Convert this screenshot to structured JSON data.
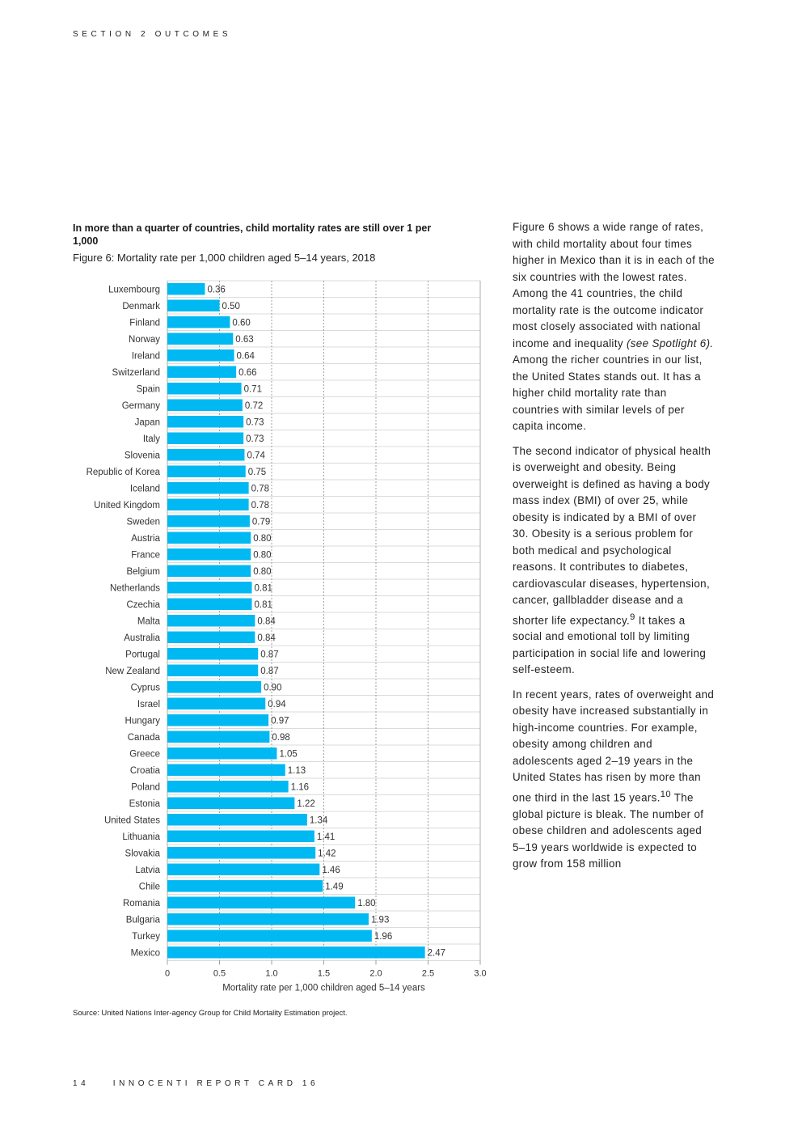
{
  "header": {
    "section": "SECTION 2 OUTCOMES"
  },
  "figure": {
    "heading": "In more than a quarter of countries, child mortality rates are still over 1 per 1,000",
    "caption_label": "Figure 6:",
    "caption_text": "Mortality rate per 1,000 children aged 5–14 years, 2018",
    "source": "Source: United Nations Inter-agency Group for Child Mortality Estimation project."
  },
  "chart_data": {
    "type": "bar",
    "orientation": "horizontal",
    "title": "Mortality rate per 1,000 children aged 5–14 years, 2018",
    "xlabel": "Mortality rate per 1,000 children aged 5–14 years",
    "ylabel": "",
    "xlim": [
      0,
      3
    ],
    "xticks": [
      "0",
      "0.5",
      "1.0",
      "1.5",
      "2.0",
      "2.5",
      "3.0"
    ],
    "bar_color": "#00b9f2",
    "categories": [
      "Luxembourg",
      "Denmark",
      "Finland",
      "Norway",
      "Ireland",
      "Switzerland",
      "Spain",
      "Germany",
      "Japan",
      "Italy",
      "Slovenia",
      "Republic of Korea",
      "Iceland",
      "United Kingdom",
      "Sweden",
      "Austria",
      "France",
      "Belgium",
      "Netherlands",
      "Czechia",
      "Malta",
      "Australia",
      "Portugal",
      "New Zealand",
      "Cyprus",
      "Israel",
      "Hungary",
      "Canada",
      "Greece",
      "Croatia",
      "Poland",
      "Estonia",
      "United States",
      "Lithuania",
      "Slovakia",
      "Latvia",
      "Chile",
      "Romania",
      "Bulgaria",
      "Turkey",
      "Mexico"
    ],
    "values": [
      0.36,
      0.5,
      0.6,
      0.63,
      0.64,
      0.66,
      0.71,
      0.72,
      0.73,
      0.73,
      0.74,
      0.75,
      0.78,
      0.78,
      0.79,
      0.8,
      0.8,
      0.8,
      0.81,
      0.81,
      0.84,
      0.84,
      0.87,
      0.87,
      0.9,
      0.94,
      0.97,
      0.98,
      1.05,
      1.13,
      1.16,
      1.22,
      1.34,
      1.41,
      1.42,
      1.46,
      1.49,
      1.8,
      1.93,
      1.96,
      2.47
    ],
    "value_labels": [
      "0.36",
      "0.50",
      "0.60",
      "0.63",
      "0.64",
      "0.66",
      "0.71",
      "0.72",
      "0.73",
      "0.73",
      "0.74",
      "0.75",
      "0.78",
      "0.78",
      "0.79",
      "0.80",
      "0.80",
      "0.80",
      "0.81",
      "0.81",
      "0.84",
      "0.84",
      "0.87",
      "0.87",
      "0.90",
      "0.94",
      "0.97",
      "0.98",
      "1.05",
      "1.13",
      "1.16",
      "1.22",
      "1.34",
      "1.41",
      "1.42",
      "1.46",
      "1.49",
      "1.80",
      "1.93",
      "1.96",
      "2.47"
    ]
  },
  "body": {
    "p1_a": "Figure 6 shows a wide range of rates, with child mortality about four times higher in Mexico than it is in each of the six countries with the lowest rates. Among the 41 countries, the child mortality rate is the outcome indicator most closely associated with national income and inequality ",
    "p1_em": "(see Spotlight 6).",
    "p1_b": " Among the richer countries in our list, the United States stands out. It has a higher child mortality rate than countries with similar levels of per capita income.",
    "p2_a": "The second indicator of physical health is overweight and obesity. Being overweight is defined as having a body mass index (BMI) of over 25, while obesity is indicated by a BMI of over 30. Obesity is a serious problem for both medical and psychological reasons. It contributes to diabetes, cardiovascular diseases, hypertension, cancer, gallbladder disease and a shorter life expectancy.",
    "p2_sup": "9",
    "p2_b": " It takes a social and emotional toll by limiting participation in social life and lowering self-esteem.",
    "p3_a": "In recent years, rates of overweight and obesity have increased substantially in high-income countries. For example, obesity among children and adolescents aged 2–19 years in the United States has risen by more than one third in the last 15 years.",
    "p3_sup": "10",
    "p3_b": " The global picture is bleak. The number of obese children and adolescents aged 5–19 years worldwide is expected to grow from 158 million"
  },
  "footer": {
    "page": "14",
    "report": "INNOCENTI REPORT CARD 16"
  }
}
